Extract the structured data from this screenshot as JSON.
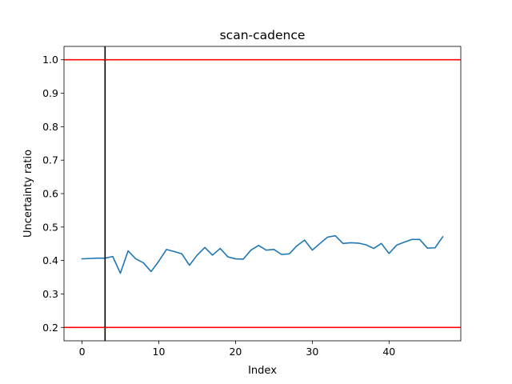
{
  "chart_data": {
    "type": "line",
    "title": "scan-cadence",
    "xlabel": "Index",
    "ylabel": "Uncertainty ratio",
    "xlim": [
      -2.35,
      49.35
    ],
    "ylim": [
      0.16,
      1.04
    ],
    "xticks": [
      0,
      10,
      20,
      30,
      40
    ],
    "yticks": [
      0.2,
      0.3,
      0.4,
      0.5,
      0.6,
      0.7,
      0.8,
      0.9,
      1.0
    ],
    "ytick_labels": [
      "0.2",
      "0.3",
      "0.4",
      "0.5",
      "0.6",
      "0.7",
      "0.8",
      "0.9",
      "1.0"
    ],
    "grid": false,
    "series": [
      {
        "color": "#1f77b4",
        "x": [
          0,
          1,
          2,
          3,
          4,
          5,
          6,
          7,
          8,
          9,
          10,
          11,
          12,
          13,
          14,
          15,
          16,
          17,
          18,
          19,
          20,
          21,
          22,
          23,
          24,
          25,
          26,
          27,
          28,
          29,
          30,
          31,
          32,
          33,
          34,
          35,
          36,
          37,
          38,
          39,
          40,
          41,
          42,
          43,
          44,
          45,
          46,
          47
        ],
        "y": [
          0.405,
          0.406,
          0.407,
          0.407,
          0.412,
          0.362,
          0.429,
          0.405,
          0.393,
          0.367,
          0.398,
          0.433,
          0.427,
          0.42,
          0.386,
          0.416,
          0.439,
          0.416,
          0.436,
          0.411,
          0.405,
          0.404,
          0.431,
          0.445,
          0.431,
          0.433,
          0.418,
          0.42,
          0.444,
          0.461,
          0.431,
          0.451,
          0.47,
          0.474,
          0.451,
          0.453,
          0.452,
          0.447,
          0.436,
          0.451,
          0.421,
          0.446,
          0.455,
          0.463,
          0.463,
          0.437,
          0.438,
          0.471
        ]
      }
    ],
    "hlines": [
      {
        "y": 1.0,
        "color": "#ff0000"
      },
      {
        "y": 0.2,
        "color": "#ff0000"
      }
    ],
    "vlines": [
      {
        "x": 3,
        "color": "#000000"
      }
    ]
  }
}
